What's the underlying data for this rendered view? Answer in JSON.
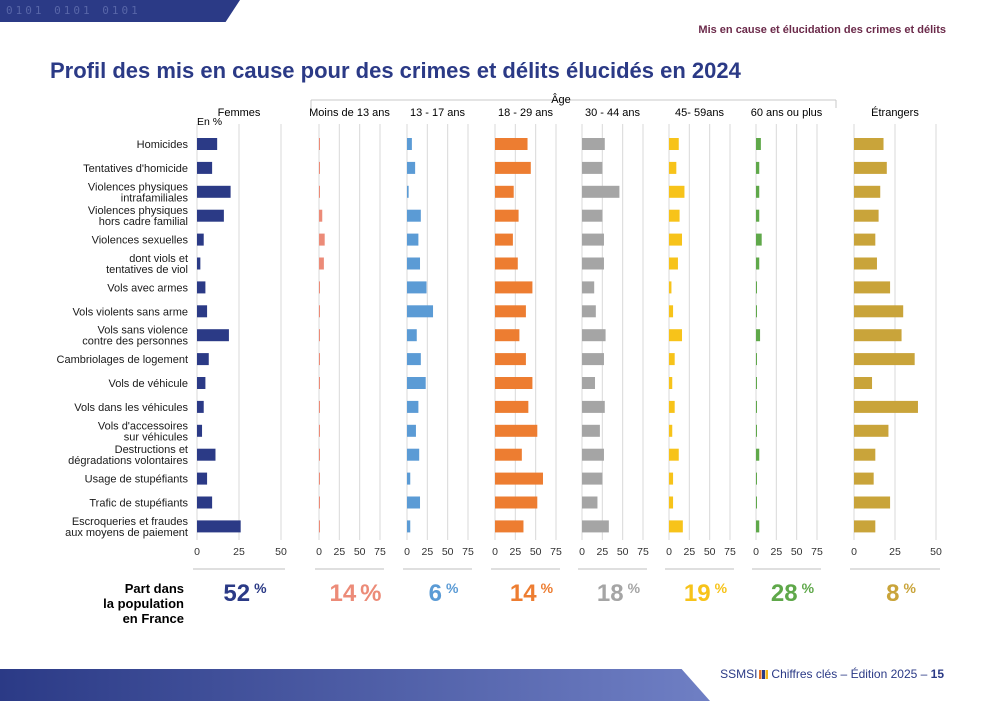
{
  "header": {
    "band_text": "0101  0101  0101",
    "section": "Mis en cause et élucidation des crimes et délits",
    "title": "Profil des mis en cause pour des crimes et délits élucidés en 2024"
  },
  "footer": {
    "brand": "SSMSI",
    "text": "Chiffres clés – Édition 2025 –",
    "page": "15"
  },
  "share_label": [
    "Part dans",
    "la population",
    "en France"
  ],
  "chart_data": {
    "type": "bar",
    "orientation": "horizontal",
    "title": "Profil des mis en cause pour des crimes et délits élucidés en 2024",
    "unit_label": "En %",
    "age_label": "Âge",
    "categories": [
      [
        "Homicides"
      ],
      [
        "Tentatives d'homicide"
      ],
      [
        "Violences physiques",
        "intrafamiliales"
      ],
      [
        "Violences physiques",
        "hors cadre familial"
      ],
      [
        "Violences sexuelles"
      ],
      [
        "dont viols et",
        "tentatives de viol"
      ],
      [
        "Vols avec armes"
      ],
      [
        "Vols violents sans arme"
      ],
      [
        "Vols sans violence",
        "contre des personnes"
      ],
      [
        "Cambriolages de logement"
      ],
      [
        "Vols de véhicule"
      ],
      [
        "Vols dans les véhicules"
      ],
      [
        "Vols d'accessoires",
        "sur véhicules"
      ],
      [
        "Destructions et",
        "dégradations volontaires"
      ],
      [
        "Usage de stupéfiants"
      ],
      [
        "Trafic de stupéfiants"
      ],
      [
        "Escroqueries et fraudes",
        "aux moyens de paiement"
      ]
    ],
    "series": [
      {
        "name": "Femmes",
        "color": "#2b3a86",
        "xlim": [
          0,
          50
        ],
        "ticks": [
          "0",
          "25",
          "50"
        ],
        "share": "52",
        "share_unit": "%",
        "values": [
          12,
          9,
          20,
          16,
          4,
          2,
          5,
          6,
          19,
          7,
          5,
          4,
          3,
          11,
          6,
          9,
          26
        ]
      },
      {
        "name": "Moins de 13 ans",
        "color": "#ec8b78",
        "xlim": [
          0,
          75
        ],
        "ticks": [
          "0",
          "25",
          "50",
          "75"
        ],
        "share": "14",
        "share_unit": "%",
        "values": [
          0.4,
          0.4,
          0.4,
          4,
          7,
          6,
          0.3,
          0.3,
          0.3,
          0.4,
          0.3,
          0.3,
          0.3,
          1,
          0.3,
          0.3,
          0.3
        ]
      },
      {
        "name": "13 - 17 ans",
        "color": "#5b9bd5",
        "xlim": [
          0,
          75
        ],
        "ticks": [
          "0",
          "25",
          "50",
          "75"
        ],
        "share": "6",
        "share_unit": "%",
        "values": [
          6,
          10,
          2,
          17,
          14,
          16,
          24,
          32,
          12,
          17,
          23,
          14,
          11,
          15,
          4,
          16,
          4
        ]
      },
      {
        "name": "18 - 29 ans",
        "color": "#ed7d31",
        "xlim": [
          0,
          75
        ],
        "ticks": [
          "0",
          "25",
          "50",
          "75"
        ],
        "share": "14",
        "share_unit": "%",
        "values": [
          40,
          44,
          23,
          29,
          22,
          28,
          46,
          38,
          30,
          38,
          46,
          41,
          52,
          33,
          59,
          52,
          35
        ]
      },
      {
        "name": "30 - 44 ans",
        "color": "#a5a5a5",
        "xlim": [
          0,
          75
        ],
        "ticks": [
          "0",
          "25",
          "50",
          "75"
        ],
        "share": "18",
        "share_unit": "%",
        "values": [
          28,
          25,
          46,
          25,
          27,
          27,
          15,
          17,
          29,
          27,
          16,
          28,
          22,
          27,
          25,
          19,
          33
        ]
      },
      {
        "name": "45- 59ans",
        "color": "#f7c31a",
        "xlim": [
          0,
          75
        ],
        "ticks": [
          "0",
          "25",
          "50",
          "75"
        ],
        "share": "19",
        "share_unit": "%",
        "values": [
          12,
          9,
          19,
          13,
          16,
          11,
          3,
          5,
          16,
          7,
          4,
          7,
          4,
          12,
          5,
          5,
          17
        ]
      },
      {
        "name": "60 ans ou plus",
        "color": "#5fa84a",
        "xlim": [
          0,
          75
        ],
        "ticks": [
          "0",
          "25",
          "50",
          "75"
        ],
        "share": "28",
        "share_unit": "%",
        "values": [
          6,
          4,
          4,
          4,
          7,
          4,
          0.5,
          1,
          5,
          1,
          0.5,
          1,
          1,
          4,
          0.5,
          0.5,
          4
        ]
      },
      {
        "name": "Étrangers",
        "color": "#c9a43a",
        "xlim": [
          0,
          50
        ],
        "ticks": [
          "0",
          "25",
          "50"
        ],
        "share": "8",
        "share_unit": "%",
        "values": [
          18,
          20,
          16,
          15,
          13,
          14,
          22,
          30,
          29,
          37,
          11,
          39,
          21,
          13,
          12,
          22,
          13
        ]
      }
    ]
  }
}
